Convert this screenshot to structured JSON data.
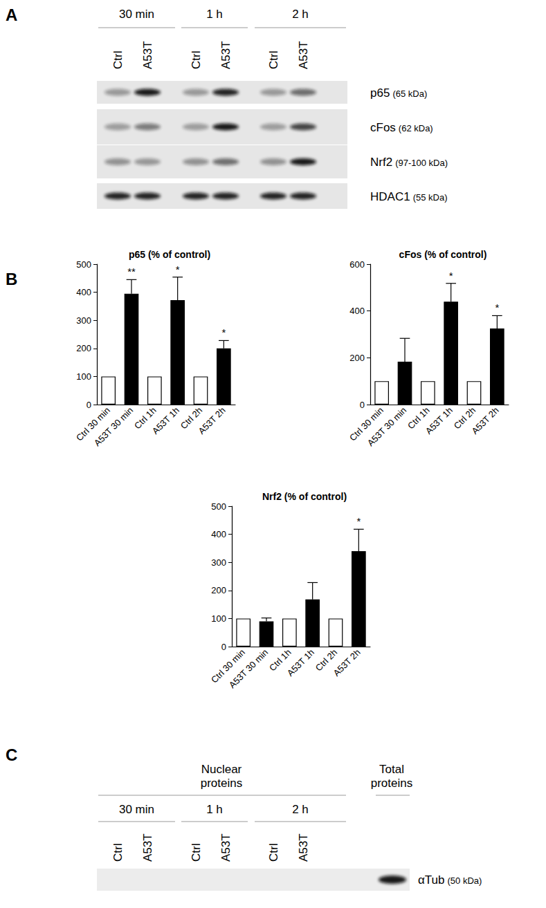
{
  "panel_a": {
    "label": "A",
    "times": [
      "30 min",
      "1 h",
      "2 h"
    ],
    "lanes": [
      "Ctrl",
      "A53T"
    ],
    "rows": [
      {
        "name": "p65",
        "mw": "(65 kDa)"
      },
      {
        "name": "cFos",
        "mw": "(62 kDa)"
      },
      {
        "name": "Nrf2",
        "mw": "(97-100 kDa)"
      },
      {
        "name": "HDAC1",
        "mw": "(55 kDa)"
      }
    ]
  },
  "panel_b": {
    "label": "B"
  },
  "panel_c": {
    "label": "C",
    "groups": [
      {
        "title": "Nuclear proteins",
        "times": [
          "30 min",
          "1 h",
          "2 h"
        ],
        "lanes": [
          "Ctrl",
          "A53T"
        ]
      },
      {
        "title": "Total proteins"
      }
    ],
    "rows": [
      {
        "name": "αTub",
        "mw": "(50 kDa)"
      }
    ]
  },
  "chart_data": [
    {
      "type": "bar",
      "title": "p65 (% of control)",
      "categories": [
        "Ctrl 30 min",
        "A53T 30 min",
        "Ctrl 1h",
        "A53T 1h",
        "Ctrl 2h",
        "A53T 2h"
      ],
      "values": [
        100,
        395,
        100,
        372,
        100,
        200
      ],
      "errors": [
        null,
        50,
        null,
        82,
        null,
        28
      ],
      "annotations": [
        null,
        "**",
        null,
        "*",
        null,
        "*"
      ],
      "colors": [
        "#ffffff",
        "#000000",
        "#ffffff",
        "#000000",
        "#ffffff",
        "#000000"
      ],
      "ylim": [
        0,
        500
      ],
      "yticks": [
        0,
        100,
        200,
        300,
        400,
        500
      ],
      "grid": false
    },
    {
      "type": "bar",
      "title": "cFos (% of control)",
      "categories": [
        "Ctrl 30 min",
        "A53T 30 min",
        "Ctrl 1h",
        "A53T 1h",
        "Ctrl 2h",
        "A53T 2h"
      ],
      "values": [
        100,
        183,
        100,
        440,
        100,
        325
      ],
      "errors": [
        null,
        100,
        null,
        78,
        null,
        55
      ],
      "annotations": [
        null,
        null,
        null,
        "*",
        null,
        "*"
      ],
      "colors": [
        "#ffffff",
        "#000000",
        "#ffffff",
        "#000000",
        "#ffffff",
        "#000000"
      ],
      "ylim": [
        0,
        600
      ],
      "yticks": [
        0,
        200,
        400,
        600
      ],
      "grid": false
    },
    {
      "type": "bar",
      "title": "Nrf2 (% of control)",
      "categories": [
        "Ctrl 30 min",
        "A53T 30 min",
        "Ctrl 1h",
        "A53T 1h",
        "Ctrl 2h",
        "A53T 2h"
      ],
      "values": [
        100,
        90,
        100,
        168,
        100,
        340
      ],
      "errors": [
        null,
        12,
        null,
        60,
        null,
        78
      ],
      "annotations": [
        null,
        null,
        null,
        null,
        null,
        "*"
      ],
      "colors": [
        "#ffffff",
        "#000000",
        "#ffffff",
        "#000000",
        "#ffffff",
        "#000000"
      ],
      "ylim": [
        0,
        500
      ],
      "yticks": [
        0,
        100,
        200,
        300,
        400,
        500
      ],
      "grid": false
    }
  ]
}
